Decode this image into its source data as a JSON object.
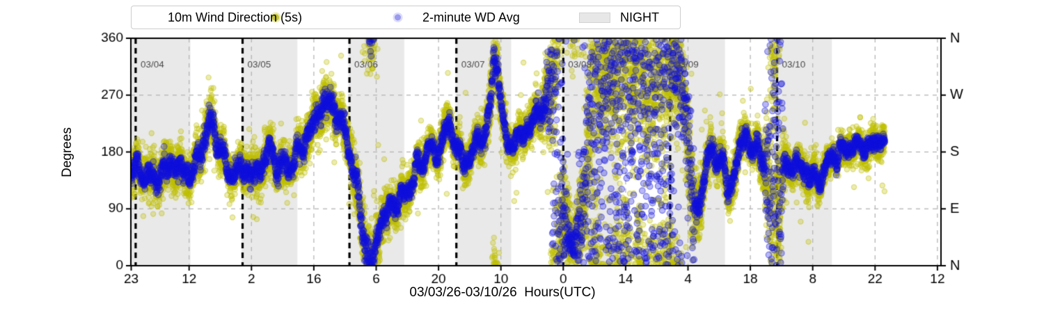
{
  "legend": {
    "items": [
      {
        "label": "10m Wind Direction (5s)",
        "marker": "yellow-dot",
        "color": "#bfbf00"
      },
      {
        "label": "2-minute WD Avg",
        "marker": "blue-dot",
        "color": "#9a9aee"
      },
      {
        "label": "NIGHT",
        "marker": "gray-patch",
        "color": "#e7e7e7"
      }
    ]
  },
  "axes": {
    "ylabel": "Degrees",
    "xlabel": "03/03/26-03/10/26  Hours(UTC)"
  },
  "chart_data": {
    "type": "scatter",
    "title": "",
    "xlabel": "03/03/26-03/10/26  Hours(UTC)",
    "ylabel": "Degrees",
    "x_axis": {
      "range_hours": [
        -1.08,
        180.8
      ],
      "ticks_hours": [
        -1,
        12,
        26,
        40,
        54,
        68,
        82,
        96,
        110,
        124,
        138,
        152,
        166,
        180
      ],
      "tick_labels": [
        "23",
        "12",
        "2",
        "16",
        "6",
        "20",
        "10",
        "0",
        "14",
        "4",
        "18",
        "8",
        "22",
        "12"
      ]
    },
    "y_axis": {
      "range": [
        0,
        360
      ],
      "ticks": [
        0,
        90,
        180,
        270,
        360
      ],
      "tick_labels": [
        "0",
        "90",
        "180",
        "270",
        "360"
      ],
      "right_labels": [
        "N",
        "E",
        "S",
        "W",
        "N"
      ],
      "gridlines": [
        90,
        180,
        270
      ]
    },
    "day_lines": [
      {
        "hour": 0,
        "label": "03/04"
      },
      {
        "hour": 24,
        "label": "03/05"
      },
      {
        "hour": 48,
        "label": "03/06"
      },
      {
        "hour": 72,
        "label": "03/07"
      },
      {
        "hour": 96,
        "label": "03/08"
      },
      {
        "hour": 120,
        "label": "03/09"
      },
      {
        "hour": 144,
        "label": "03/10"
      }
    ],
    "night_bands_hours": [
      [
        -1.08,
        12.27
      ],
      [
        23.78,
        36.3
      ],
      [
        47.78,
        60.3
      ],
      [
        71.78,
        84.3
      ],
      [
        95.78,
        108.4
      ],
      [
        119.78,
        132.3
      ],
      [
        143.78,
        156.3
      ]
    ],
    "series": [
      {
        "name": "10m Wind Direction (5s)",
        "color": "#bfbf00",
        "marker_radius": 3.6,
        "cadence_hours": 0.025,
        "spread_factor": 0.55
      },
      {
        "name": "2-minute WD Avg",
        "color": "#1212dd",
        "marker_radius": 4.3,
        "cadence_hours": 0.0333,
        "spread_factor_calm": 0.24,
        "spread_factor_storm": 0.85
      }
    ],
    "data_span_hours": [
      -1.08,
      168.2
    ],
    "wrap_degrees": 360,
    "mean_deg_by_hour": [
      [
        -1.08,
        150
      ],
      [
        2,
        146
      ],
      [
        4,
        138
      ],
      [
        6,
        152
      ],
      [
        8,
        160
      ],
      [
        10,
        148
      ],
      [
        12,
        140
      ],
      [
        14,
        168
      ],
      [
        15.5,
        208
      ],
      [
        16.5,
        230
      ],
      [
        17.5,
        222
      ],
      [
        19,
        185
      ],
      [
        20.5,
        150
      ],
      [
        21.5,
        138
      ],
      [
        23,
        148
      ],
      [
        25,
        152
      ],
      [
        27,
        146
      ],
      [
        29,
        176
      ],
      [
        30,
        184
      ],
      [
        31.5,
        160
      ],
      [
        33,
        148
      ],
      [
        35,
        158
      ],
      [
        37,
        186
      ],
      [
        39,
        216
      ],
      [
        41,
        244
      ],
      [
        42.5,
        258
      ],
      [
        44,
        248
      ],
      [
        45.5,
        232
      ],
      [
        47,
        210
      ],
      [
        48.5,
        172
      ],
      [
        50,
        108
      ],
      [
        51.3,
        50
      ],
      [
        52.4,
        10
      ],
      [
        53.2,
        354
      ],
      [
        54,
        40
      ],
      [
        54.8,
        62
      ],
      [
        56,
        70
      ],
      [
        57,
        88
      ],
      [
        58.5,
        98
      ],
      [
        60,
        112
      ],
      [
        61.5,
        130
      ],
      [
        63,
        155
      ],
      [
        64.5,
        170
      ],
      [
        66,
        182
      ],
      [
        67.5,
        172
      ],
      [
        69,
        195
      ],
      [
        70.3,
        228
      ],
      [
        71.2,
        205
      ],
      [
        72.5,
        188
      ],
      [
        74,
        162
      ],
      [
        75.5,
        185
      ],
      [
        77,
        195
      ],
      [
        78.5,
        205
      ],
      [
        79.6,
        245
      ],
      [
        80.4,
        322
      ],
      [
        81.2,
        330
      ],
      [
        82,
        252
      ],
      [
        83,
        205
      ],
      [
        84,
        196
      ],
      [
        85.5,
        204
      ],
      [
        87,
        210
      ],
      [
        88.5,
        218
      ],
      [
        90,
        232
      ],
      [
        91.5,
        246
      ],
      [
        92.8,
        268
      ],
      [
        93.6,
        305
      ],
      [
        94.3,
        345
      ],
      [
        94.9,
        30
      ],
      [
        95.6,
        62
      ],
      [
        96.5,
        85
      ],
      [
        97.5,
        48
      ],
      [
        98.5,
        30
      ],
      [
        99.5,
        55
      ],
      [
        100.5,
        95
      ],
      [
        101.3,
        150
      ],
      [
        102,
        260
      ],
      [
        102.8,
        325
      ],
      [
        103.6,
        345
      ],
      [
        104.4,
        312
      ],
      [
        105.2,
        288
      ],
      [
        106,
        318
      ],
      [
        107,
        282
      ],
      [
        108,
        336
      ],
      [
        109,
        298
      ],
      [
        110,
        348
      ],
      [
        111,
        315
      ],
      [
        112,
        275
      ],
      [
        113,
        338
      ],
      [
        114,
        298
      ],
      [
        115,
        258
      ],
      [
        116,
        318
      ],
      [
        117,
        286
      ],
      [
        118,
        345
      ],
      [
        119,
        312
      ],
      [
        120,
        338
      ],
      [
        121,
        322
      ],
      [
        122,
        302
      ],
      [
        123,
        278
      ],
      [
        124,
        195
      ],
      [
        125,
        112
      ],
      [
        126,
        66
      ],
      [
        127,
        112
      ],
      [
        128,
        162
      ],
      [
        129,
        185
      ],
      [
        130,
        172
      ],
      [
        131,
        182
      ],
      [
        132,
        162
      ],
      [
        133,
        112
      ],
      [
        134,
        136
      ],
      [
        135,
        162
      ],
      [
        136,
        188
      ],
      [
        137,
        203
      ],
      [
        138,
        189
      ],
      [
        139,
        179
      ],
      [
        140,
        188
      ],
      [
        141,
        168
      ],
      [
        142,
        128
      ],
      [
        142.8,
        45
      ],
      [
        143.4,
        350
      ],
      [
        144,
        120
      ],
      [
        144.6,
        60
      ],
      [
        145.2,
        140
      ],
      [
        146,
        158
      ],
      [
        147,
        150
      ],
      [
        148,
        159
      ],
      [
        149,
        147
      ],
      [
        150,
        156
      ],
      [
        151,
        139
      ],
      [
        152,
        153
      ],
      [
        153,
        129
      ],
      [
        154,
        149
      ],
      [
        155,
        168
      ],
      [
        156,
        159
      ],
      [
        157,
        173
      ],
      [
        158,
        179
      ],
      [
        159,
        171
      ],
      [
        160,
        183
      ],
      [
        161,
        193
      ],
      [
        162,
        184
      ],
      [
        163,
        197
      ],
      [
        164,
        189
      ],
      [
        165,
        199
      ],
      [
        166,
        193
      ],
      [
        167,
        203
      ],
      [
        168,
        195
      ]
    ],
    "spread_deg_by_hour": [
      [
        -1.08,
        30
      ],
      [
        6,
        32
      ],
      [
        12,
        27
      ],
      [
        15,
        34
      ],
      [
        17,
        36
      ],
      [
        20,
        30
      ],
      [
        24,
        28
      ],
      [
        29,
        32
      ],
      [
        33,
        28
      ],
      [
        38,
        32
      ],
      [
        42,
        36
      ],
      [
        46,
        32
      ],
      [
        49,
        38
      ],
      [
        52,
        48
      ],
      [
        54,
        44
      ],
      [
        56,
        28
      ],
      [
        60,
        30
      ],
      [
        64,
        28
      ],
      [
        67,
        27
      ],
      [
        70,
        30
      ],
      [
        72,
        27
      ],
      [
        76,
        29
      ],
      [
        79,
        32
      ],
      [
        80.5,
        52
      ],
      [
        82,
        34
      ],
      [
        84,
        27
      ],
      [
        88,
        30
      ],
      [
        91,
        34
      ],
      [
        93,
        70
      ],
      [
        94,
        140
      ],
      [
        95,
        85
      ],
      [
        96,
        60
      ],
      [
        97,
        55
      ],
      [
        98,
        48
      ],
      [
        100,
        62
      ],
      [
        101,
        95
      ],
      [
        102,
        170
      ],
      [
        103,
        140
      ],
      [
        104,
        115
      ],
      [
        105,
        98
      ],
      [
        106,
        120
      ],
      [
        107,
        98
      ],
      [
        108,
        135
      ],
      [
        109,
        108
      ],
      [
        110,
        145
      ],
      [
        111,
        118
      ],
      [
        112,
        102
      ],
      [
        113,
        140
      ],
      [
        114,
        112
      ],
      [
        115,
        98
      ],
      [
        116,
        128
      ],
      [
        117,
        102
      ],
      [
        118,
        150
      ],
      [
        119,
        118
      ],
      [
        120,
        110
      ],
      [
        121,
        72
      ],
      [
        122,
        62
      ],
      [
        123,
        68
      ],
      [
        124,
        78
      ],
      [
        125,
        62
      ],
      [
        126,
        46
      ],
      [
        127,
        38
      ],
      [
        128,
        32
      ],
      [
        130,
        30
      ],
      [
        132,
        33
      ],
      [
        133,
        36
      ],
      [
        135,
        30
      ],
      [
        137,
        28
      ],
      [
        139,
        28
      ],
      [
        141,
        40
      ],
      [
        142,
        95
      ],
      [
        142.8,
        150
      ],
      [
        143.5,
        175
      ],
      [
        144.2,
        135
      ],
      [
        145,
        70
      ],
      [
        145.8,
        36
      ],
      [
        147,
        26
      ],
      [
        150,
        25
      ],
      [
        153,
        26
      ],
      [
        156,
        24
      ],
      [
        159,
        24
      ],
      [
        162,
        23
      ],
      [
        165,
        24
      ],
      [
        168,
        23
      ]
    ],
    "colors": {
      "night_band": "#e9e9e9",
      "grid": "#b5b5b5",
      "day_line": "#000000",
      "date_label": "#4a4a4a",
      "spine": "#000000"
    }
  }
}
